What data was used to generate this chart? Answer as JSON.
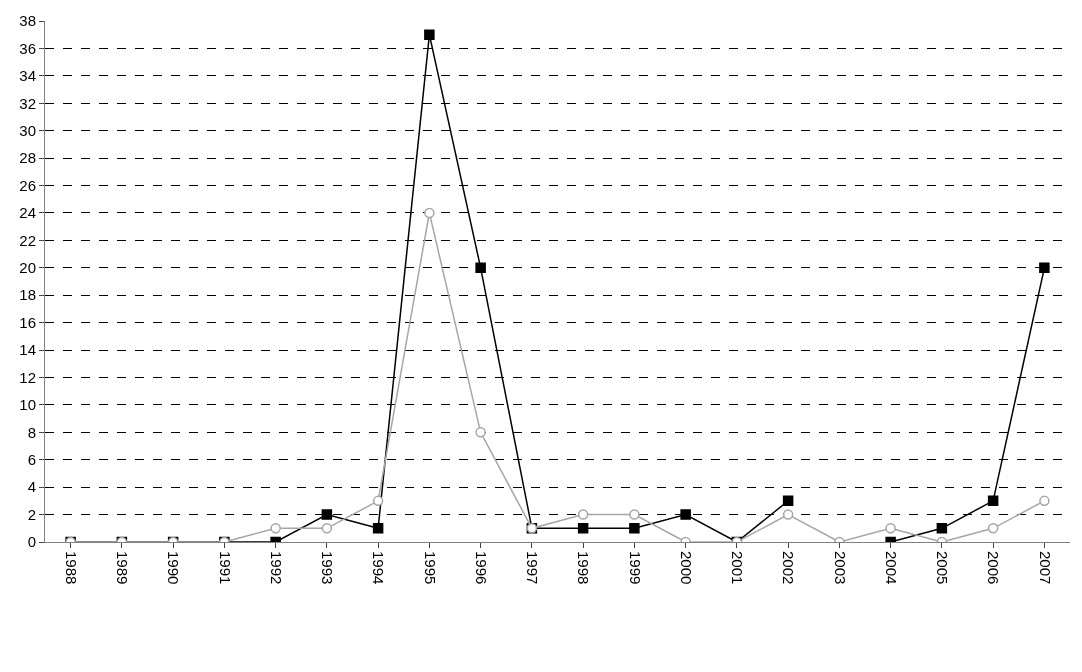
{
  "chart_data": {
    "type": "line",
    "categories": [
      "1988",
      "1989",
      "1990",
      "1991",
      "1992",
      "1993",
      "1994",
      "1995",
      "1996",
      "1997",
      "1998",
      "1999",
      "2000",
      "2001",
      "2002",
      "2003",
      "2004",
      "2005",
      "2006",
      "2007"
    ],
    "series": [
      {
        "color": "#000000",
        "marker": "square",
        "values": [
          0,
          0,
          0,
          0,
          0,
          2,
          1,
          37,
          20,
          1,
          1,
          1,
          2,
          0,
          3,
          null,
          0,
          1,
          3,
          20
        ]
      },
      {
        "color": "#a6a6a6",
        "marker": "circle",
        "values": [
          0,
          0,
          0,
          0,
          1,
          1,
          3,
          24,
          8,
          1,
          2,
          2,
          0,
          0,
          2,
          0,
          1,
          0,
          1,
          3
        ]
      }
    ],
    "ylim": [
      0,
      38
    ],
    "yticks": [
      0,
      2,
      4,
      6,
      8,
      10,
      12,
      14,
      16,
      18,
      20,
      22,
      24,
      26,
      28,
      30,
      32,
      34,
      36,
      38
    ],
    "grid": "y",
    "line_style": "solid"
  }
}
